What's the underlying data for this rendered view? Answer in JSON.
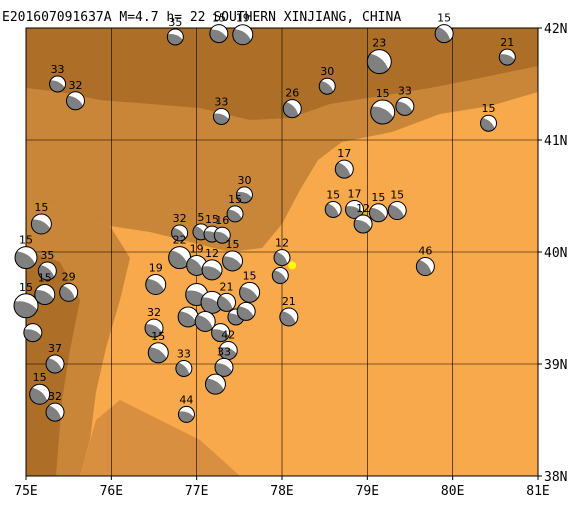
{
  "map": {
    "title": "E201607091637A M=4.7 h= 22 SOUTHERN XINJIANG, CHINA",
    "lon_range": [
      75,
      81
    ],
    "lat_range": [
      38,
      42
    ],
    "lon_ticks": [
      "75E",
      "76E",
      "77E",
      "78E",
      "79E",
      "80E",
      "81E"
    ],
    "lat_ticks": [
      "42N",
      "41N",
      "40N",
      "39N",
      "38N"
    ],
    "colors": {
      "lowland": "#f7a94b",
      "mountain": "#c98638",
      "high_mountain": "#a86b25",
      "grid": "#000000",
      "compression_quadrant": "#808080",
      "dilatation_quadrant": "#ffffff",
      "event_marker": "#ffff00"
    },
    "event_marker": {
      "lon": 78.12,
      "lat": 39.88
    },
    "mechanisms": [
      {
        "depth": "35",
        "lon": 76.75,
        "lat": 41.92,
        "size": 8
      },
      {
        "depth": "15",
        "lon": 77.26,
        "lat": 41.95,
        "size": 9
      },
      {
        "depth": "19",
        "lon": 77.54,
        "lat": 41.94,
        "size": 10
      },
      {
        "depth": "23",
        "lon": 79.14,
        "lat": 41.7,
        "size": 12
      },
      {
        "depth": "15",
        "lon": 79.9,
        "lat": 41.95,
        "size": 9
      },
      {
        "depth": "21",
        "lon": 80.64,
        "lat": 41.74,
        "size": 8
      },
      {
        "depth": "33",
        "lon": 75.37,
        "lat": 41.5,
        "size": 8
      },
      {
        "depth": "32",
        "lon": 75.58,
        "lat": 41.35,
        "size": 9
      },
      {
        "depth": "30",
        "lon": 78.53,
        "lat": 41.48,
        "size": 8
      },
      {
        "depth": "26",
        "lon": 78.12,
        "lat": 41.28,
        "size": 9
      },
      {
        "depth": "33",
        "lon": 77.29,
        "lat": 41.21,
        "size": 8
      },
      {
        "depth": "15",
        "lon": 79.18,
        "lat": 41.25,
        "size": 12
      },
      {
        "depth": "33",
        "lon": 79.44,
        "lat": 41.3,
        "size": 9
      },
      {
        "depth": "15",
        "lon": 80.42,
        "lat": 41.15,
        "size": 8
      },
      {
        "depth": "17",
        "lon": 78.73,
        "lat": 40.74,
        "size": 9
      },
      {
        "depth": "30",
        "lon": 77.56,
        "lat": 40.51,
        "size": 8
      },
      {
        "depth": "15",
        "lon": 75.18,
        "lat": 40.25,
        "size": 10
      },
      {
        "depth": "15",
        "lon": 75.0,
        "lat": 39.95,
        "size": 11
      },
      {
        "depth": "35",
        "lon": 75.25,
        "lat": 39.83,
        "size": 9
      },
      {
        "depth": "29",
        "lon": 75.5,
        "lat": 39.64,
        "size": 9
      },
      {
        "depth": "15",
        "lon": 75.0,
        "lat": 39.52,
        "size": 12
      },
      {
        "depth": "15",
        "lon": 75.22,
        "lat": 39.62,
        "size": 10
      },
      {
        "depth": "19",
        "lon": 76.52,
        "lat": 39.71,
        "size": 10
      },
      {
        "depth": "32",
        "lon": 76.8,
        "lat": 40.17,
        "size": 8
      },
      {
        "depth": "5",
        "lon": 77.05,
        "lat": 40.18,
        "size": 8
      },
      {
        "depth": "15",
        "lon": 77.18,
        "lat": 40.16,
        "size": 8
      },
      {
        "depth": "16",
        "lon": 77.3,
        "lat": 40.15,
        "size": 8
      },
      {
        "depth": "15",
        "lon": 77.45,
        "lat": 40.34,
        "size": 8
      },
      {
        "depth": "22",
        "lon": 76.8,
        "lat": 39.95,
        "size": 11
      },
      {
        "depth": "19",
        "lon": 77.0,
        "lat": 39.88,
        "size": 10
      },
      {
        "depth": "12",
        "lon": 77.18,
        "lat": 39.84,
        "size": 10
      },
      {
        "depth": "15",
        "lon": 77.42,
        "lat": 39.92,
        "size": 10
      },
      {
        "depth": "15",
        "lon": 77.62,
        "lat": 39.64,
        "size": 10
      },
      {
        "depth": "3",
        "lon": 77.98,
        "lat": 39.79,
        "size": 8
      },
      {
        "depth": "12",
        "lon": 78.0,
        "lat": 39.95,
        "size": 8
      },
      {
        "depth": "",
        "lon": 77.0,
        "lat": 39.62,
        "size": 11
      },
      {
        "depth": "",
        "lon": 77.18,
        "lat": 39.55,
        "size": 11
      },
      {
        "depth": "",
        "lon": 76.9,
        "lat": 39.42,
        "size": 10
      },
      {
        "depth": "",
        "lon": 77.1,
        "lat": 39.38,
        "size": 10
      },
      {
        "depth": "21",
        "lon": 77.35,
        "lat": 39.55,
        "size": 9
      },
      {
        "depth": "",
        "lon": 77.28,
        "lat": 39.28,
        "size": 9
      },
      {
        "depth": "",
        "lon": 77.46,
        "lat": 39.42,
        "size": 8
      },
      {
        "depth": "",
        "lon": 77.58,
        "lat": 39.47,
        "size": 9
      },
      {
        "depth": "21",
        "lon": 78.08,
        "lat": 39.42,
        "size": 9
      },
      {
        "depth": "15",
        "lon": 78.6,
        "lat": 40.38,
        "size": 8
      },
      {
        "depth": "17",
        "lon": 78.85,
        "lat": 40.38,
        "size": 9
      },
      {
        "depth": "12",
        "lon": 78.95,
        "lat": 40.25,
        "size": 9
      },
      {
        "depth": "15",
        "lon": 79.13,
        "lat": 40.35,
        "size": 9
      },
      {
        "depth": "15",
        "lon": 79.35,
        "lat": 40.37,
        "size": 9
      },
      {
        "depth": "46",
        "lon": 79.68,
        "lat": 39.87,
        "size": 9
      },
      {
        "depth": "",
        "lon": 75.08,
        "lat": 39.28,
        "size": 9
      },
      {
        "depth": "32",
        "lon": 76.5,
        "lat": 39.32,
        "size": 9
      },
      {
        "depth": "15",
        "lon": 76.55,
        "lat": 39.1,
        "size": 10
      },
      {
        "depth": "37",
        "lon": 75.34,
        "lat": 39.0,
        "size": 9
      },
      {
        "depth": "33",
        "lon": 76.85,
        "lat": 38.96,
        "size": 8
      },
      {
        "depth": "42",
        "lon": 77.37,
        "lat": 39.12,
        "size": 9
      },
      {
        "depth": "33",
        "lon": 77.32,
        "lat": 38.97,
        "size": 9
      },
      {
        "depth": "",
        "lon": 77.22,
        "lat": 38.82,
        "size": 10
      },
      {
        "depth": "15",
        "lon": 75.16,
        "lat": 38.73,
        "size": 10
      },
      {
        "depth": "32",
        "lon": 75.34,
        "lat": 38.57,
        "size": 9
      },
      {
        "depth": "44",
        "lon": 76.88,
        "lat": 38.55,
        "size": 8
      }
    ]
  }
}
